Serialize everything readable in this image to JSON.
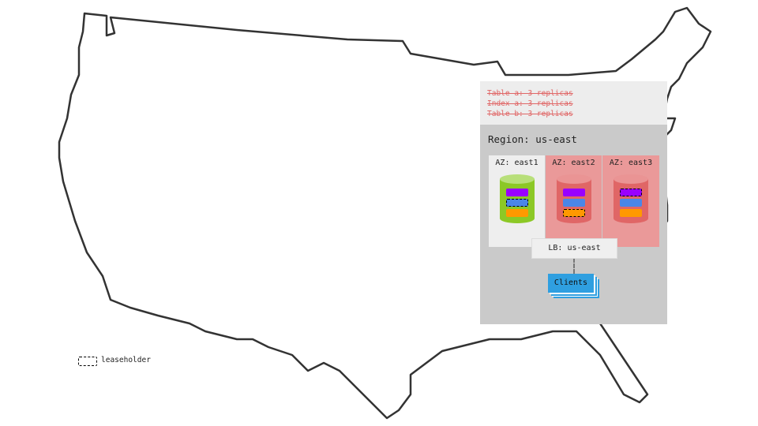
{
  "replicas": [
    "Table a: 3 replicas",
    "Index a: 3 replicas",
    "Table b: 3 replicas"
  ],
  "region": "Region: us-east",
  "azs": [
    {
      "label": "AZ: east1",
      "status": "healthy",
      "bg": "#eeeeee",
      "cyl": "#8cc826",
      "cyltop": "#b8df7a",
      "leaseholder": "blue"
    },
    {
      "label": "AZ: east2",
      "status": "failed",
      "bg": "#ea9999",
      "cyl": "#e06666",
      "cyltop": "#ea9494",
      "leaseholder": "orange"
    },
    {
      "label": "AZ: east3",
      "status": "failed",
      "bg": "#ea9999",
      "cyl": "#e06666",
      "cyltop": "#ea9494",
      "leaseholder": "purple"
    }
  ],
  "range_colors": {
    "purple": "#9900ff",
    "blue": "#4a86e8",
    "orange": "#ff9900"
  },
  "lb": "LB: us-east",
  "clients": "Clients",
  "legend": "leaseholder"
}
